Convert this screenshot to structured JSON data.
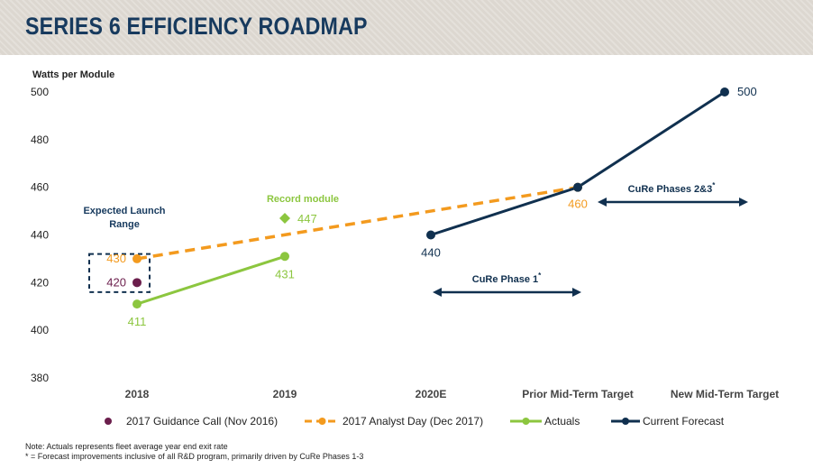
{
  "page": {
    "title": "SERIES 6 EFFICIENCY ROADMAP",
    "notes": [
      "Note: Actuals represents fleet average year end exit rate",
      "* = Forecast improvements inclusive of all R&D program, primarily driven by CuRe Phases 1-3"
    ]
  },
  "chart_data": {
    "type": "line",
    "ylabel": "Watts per Module",
    "ylim": [
      380,
      500
    ],
    "yticks": [
      380,
      400,
      420,
      440,
      460,
      480,
      500
    ],
    "grid": false,
    "categories": [
      "2018",
      "2019",
      "2020E",
      "Prior Mid-Term Target",
      "New Mid-Term Target"
    ],
    "series": [
      {
        "name": "2017 Guidance Call (Nov 2016)",
        "style": "marker",
        "color": "#6b1e4c",
        "points": [
          {
            "x": "2018",
            "y": 420,
            "label": "420"
          }
        ]
      },
      {
        "name": "2017 Analyst Day (Dec 2017)",
        "style": "dashed",
        "color": "#f39a1e",
        "points": [
          {
            "x": "2018",
            "y": 430,
            "label": "430"
          },
          {
            "x": "Prior Mid-Term Target",
            "y": 460,
            "label": "460"
          }
        ]
      },
      {
        "name": "Actuals",
        "style": "solid",
        "color": "#8cc63f",
        "points": [
          {
            "x": "2018",
            "y": 411,
            "label": "411"
          },
          {
            "x": "2019",
            "y": 431,
            "label": "431"
          }
        ]
      },
      {
        "name": "Current Forecast",
        "style": "solid",
        "color": "#10304f",
        "points": [
          {
            "x": "2020E",
            "y": 440,
            "label": "440"
          },
          {
            "x": "Prior Mid-Term Target",
            "y": 460
          },
          {
            "x": "New Mid-Term Target",
            "y": 500,
            "label": "500"
          }
        ]
      }
    ],
    "annotations": {
      "record_module": {
        "label": "Record module",
        "x": "2019",
        "y": 447,
        "value": "447",
        "color": "#8cc63f"
      },
      "launch_range": {
        "label": "Expected Launch Range",
        "x": "2018",
        "y_range": [
          416,
          432
        ]
      },
      "cure_phase_1": {
        "label": "CuRe Phase 1",
        "sup": "*",
        "y": 416,
        "from": "2020E",
        "to": "Prior Mid-Term Target"
      },
      "cure_phases_23": {
        "label": "CuRe Phases 2&3",
        "sup": "*",
        "y": 474,
        "from": "Prior Mid-Term Target",
        "to": "New Mid-Term Target"
      }
    }
  }
}
